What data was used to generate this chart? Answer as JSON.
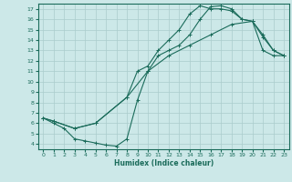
{
  "title": "",
  "xlabel": "Humidex (Indice chaleur)",
  "bg_color": "#cce8e8",
  "grid_color": "#aacccc",
  "line_color": "#1a6b5a",
  "xlim": [
    -0.5,
    23.5
  ],
  "ylim": [
    3.5,
    17.5
  ],
  "xticks": [
    0,
    1,
    2,
    3,
    4,
    5,
    6,
    7,
    8,
    9,
    10,
    11,
    12,
    13,
    14,
    15,
    16,
    17,
    18,
    19,
    20,
    21,
    22,
    23
  ],
  "yticks": [
    4,
    5,
    6,
    7,
    8,
    9,
    10,
    11,
    12,
    13,
    14,
    15,
    16,
    17
  ],
  "line1_x": [
    0,
    1,
    2,
    3,
    4,
    5,
    6,
    7,
    8,
    9,
    10,
    11,
    12,
    13,
    14,
    15,
    16,
    17,
    18,
    19,
    20,
    21,
    22,
    23
  ],
  "line1_y": [
    6.5,
    6.0,
    5.5,
    4.5,
    4.3,
    4.1,
    3.9,
    3.8,
    4.5,
    8.2,
    11.0,
    12.5,
    13.0,
    13.5,
    14.5,
    16.0,
    17.2,
    17.3,
    17.0,
    16.0,
    15.8,
    13.0,
    12.5,
    12.5
  ],
  "line2_x": [
    0,
    1,
    3,
    5,
    8,
    9,
    10,
    11,
    12,
    13,
    14,
    15,
    16,
    17,
    18,
    19,
    20,
    21,
    22,
    23
  ],
  "line2_y": [
    6.5,
    6.2,
    5.5,
    6.0,
    8.5,
    11.0,
    11.5,
    13.0,
    14.0,
    15.0,
    16.5,
    17.3,
    17.0,
    17.0,
    16.8,
    16.0,
    15.8,
    14.3,
    13.0,
    12.5
  ],
  "line3_x": [
    0,
    1,
    3,
    5,
    8,
    10,
    12,
    14,
    16,
    18,
    20,
    21,
    22,
    23
  ],
  "line3_y": [
    6.5,
    6.2,
    5.5,
    6.0,
    8.5,
    11.0,
    12.5,
    13.5,
    14.5,
    15.5,
    15.8,
    14.5,
    13.0,
    12.5
  ]
}
